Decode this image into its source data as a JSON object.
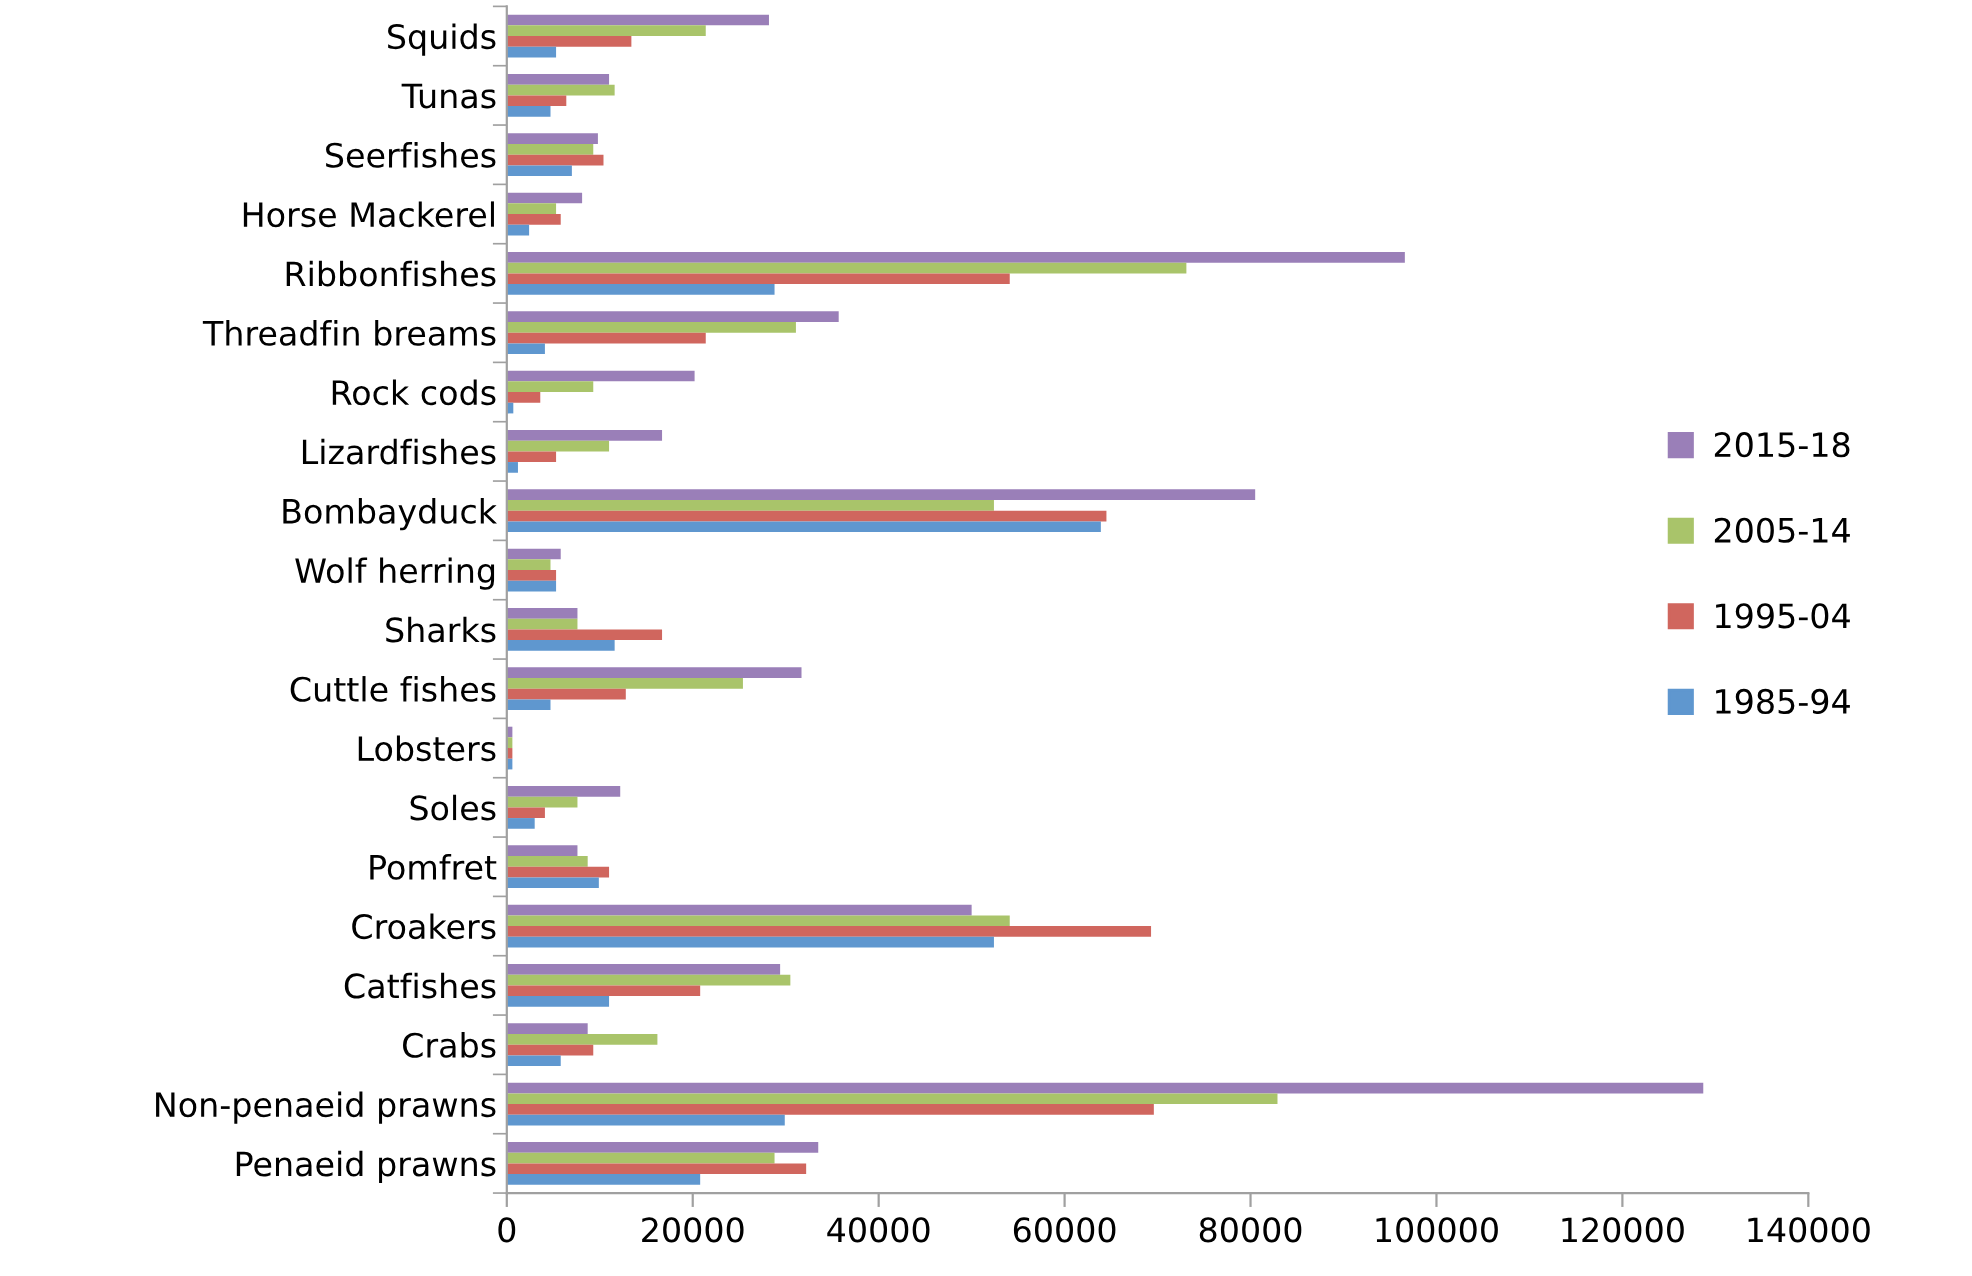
{
  "chart_data": {
    "type": "bar",
    "orientation": "horizontal",
    "categories": [
      "Squids",
      "Tunas",
      "Seerfishes",
      "Horse Mackerel",
      "Ribbonfishes",
      "Threadfin breams",
      "Rock cods",
      "Lizardfishes",
      "Bombayduck",
      "Wolf herring",
      "Sharks",
      "Cuttle fishes",
      "Lobsters",
      "Soles",
      "Pomfret",
      "Croakers",
      "Catfishes",
      "Crabs",
      "Non-penaeid prawns",
      "Penaeid prawns"
    ],
    "series": [
      {
        "name": "2015-18",
        "color": "#9a7fb8",
        "values": [
          28200,
          11000,
          9800,
          8100,
          96600,
          35700,
          20200,
          16700,
          80500,
          5800,
          7600,
          31700,
          600,
          12200,
          7600,
          50000,
          29400,
          8700,
          128700,
          33500
        ]
      },
      {
        "name": "2005-14",
        "color": "#a9c46a",
        "values": [
          21400,
          11600,
          9300,
          5300,
          73100,
          31100,
          9300,
          11000,
          52400,
          4700,
          7600,
          25400,
          600,
          7600,
          8700,
          54100,
          30500,
          16200,
          82900,
          28800
        ]
      },
      {
        "name": "1995-04",
        "color": "#d0665e",
        "values": [
          13400,
          6400,
          10400,
          5800,
          54100,
          21400,
          3600,
          5300,
          64500,
          5300,
          16700,
          12800,
          600,
          4100,
          11000,
          69300,
          20800,
          9300,
          69600,
          32200
        ]
      },
      {
        "name": "1985-94",
        "color": "#5f97cf",
        "values": [
          5300,
          4700,
          7000,
          2400,
          28800,
          4100,
          700,
          1200,
          63900,
          5300,
          11600,
          4700,
          600,
          3000,
          9900,
          52400,
          11000,
          5800,
          29900,
          20800
        ]
      }
    ],
    "xlim": [
      0,
      140000
    ],
    "xticks": [
      0,
      20000,
      40000,
      60000,
      80000,
      100000,
      120000,
      140000
    ],
    "grid": false,
    "legend": "right"
  }
}
